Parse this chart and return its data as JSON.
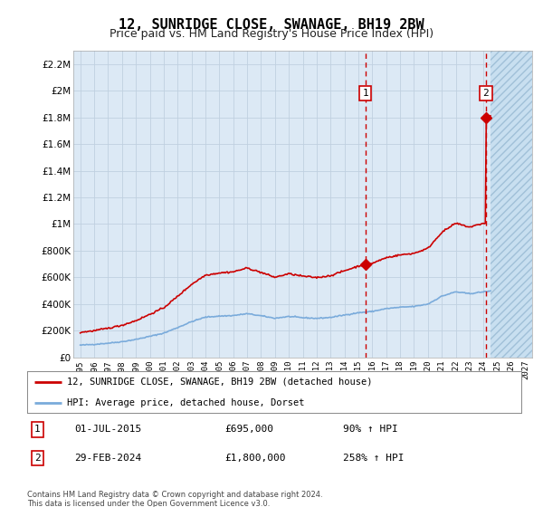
{
  "title": "12, SUNRIDGE CLOSE, SWANAGE, BH19 2BW",
  "subtitle": "Price paid vs. HM Land Registry's House Price Index (HPI)",
  "title_fontsize": 11,
  "subtitle_fontsize": 9,
  "background_color": "#ffffff",
  "plot_bg_color": "#dce9f5",
  "grid_color": "#c8d8e8",
  "ylim": [
    0,
    2300000
  ],
  "yticks": [
    0,
    200000,
    400000,
    600000,
    800000,
    1000000,
    1200000,
    1400000,
    1600000,
    1800000,
    2000000,
    2200000
  ],
  "ytick_labels": [
    "£0",
    "£200K",
    "£400K",
    "£600K",
    "£800K",
    "£1M",
    "£1.2M",
    "£1.4M",
    "£1.6M",
    "£1.8M",
    "£2M",
    "£2.2M"
  ],
  "hpi_line_color": "#7aabdb",
  "house_line_color": "#cc0000",
  "sale1_x": 2015.5,
  "sale1_value": 695000,
  "sale2_x": 2024.17,
  "sale2_value": 1800000,
  "sale1_label": "01-JUL-2015",
  "sale1_price": "£695,000",
  "sale1_pct": "90% ↑ HPI",
  "sale2_label": "29-FEB-2024",
  "sale2_price": "£1,800,000",
  "sale2_pct": "258% ↑ HPI",
  "legend_line1": "12, SUNRIDGE CLOSE, SWANAGE, BH19 2BW (detached house)",
  "legend_line2": "HPI: Average price, detached house, Dorset",
  "footnote": "Contains HM Land Registry data © Crown copyright and database right 2024.\nThis data is licensed under the Open Government Licence v3.0.",
  "hatch_start_x": 2024.5,
  "xlim_start": 1994.5,
  "xlim_end": 2027.5
}
